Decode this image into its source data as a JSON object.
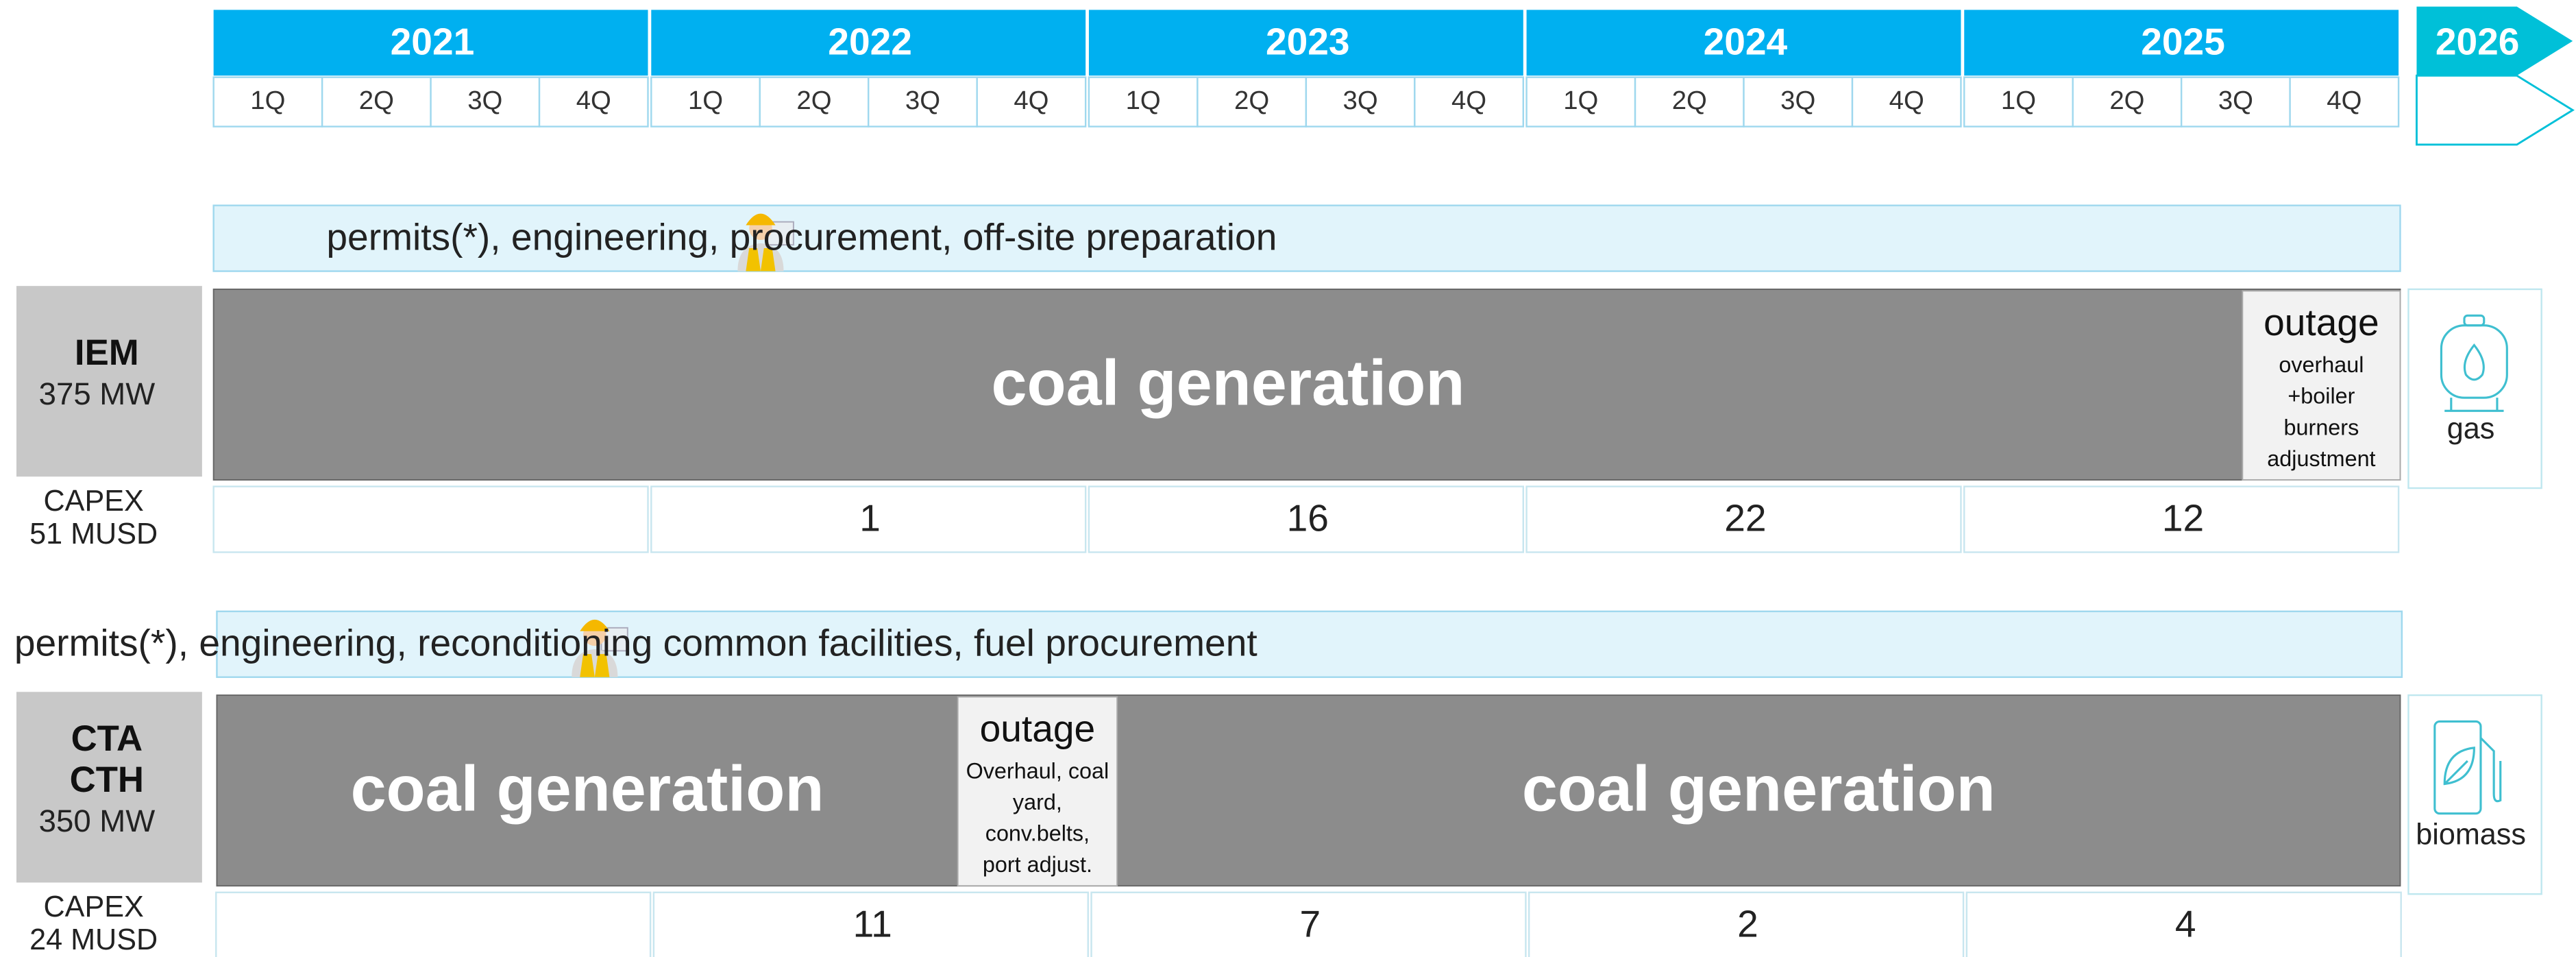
{
  "timeline": {
    "years": [
      {
        "label": "2021",
        "quarters": [
          "1Q",
          "2Q",
          "3Q",
          "4Q"
        ]
      },
      {
        "label": "2022",
        "quarters": [
          "1Q",
          "2Q",
          "3Q",
          "4Q"
        ]
      },
      {
        "label": "2023",
        "quarters": [
          "1Q",
          "2Q",
          "3Q",
          "4Q"
        ]
      },
      {
        "label": "2024",
        "quarters": [
          "1Q",
          "2Q",
          "3Q",
          "4Q"
        ]
      },
      {
        "label": "2025",
        "quarters": [
          "1Q",
          "2Q",
          "3Q",
          "4Q"
        ]
      }
    ],
    "next_year": "2026"
  },
  "plants": [
    {
      "name": [
        "IEM"
      ],
      "capacity": "375 MW",
      "capex_label": "CAPEX",
      "capex_total": "51 MUSD",
      "preparation": "permits(*), engineering, procurement, off-site preparation",
      "segments": [
        {
          "label": "coal generation"
        },
        {
          "title": "outage",
          "detail": [
            "overhaul",
            "+boiler",
            "burners",
            "adjustment"
          ]
        }
      ],
      "capex_by_year": [
        null,
        1,
        16,
        22,
        12
      ],
      "fuel": "gas"
    },
    {
      "name": [
        "CTA",
        "CTH"
      ],
      "capacity": "350 MW",
      "capex_label": "CAPEX",
      "capex_total": "24 MUSD",
      "preparation": "permits(*), engineering, reconditioning common facilities, fuel procurement",
      "segments": [
        {
          "label": "coal generation"
        },
        {
          "title": "outage",
          "detail": [
            "Overhaul, coal",
            "yard,",
            "conv.belts,",
            "port adjust."
          ]
        },
        {
          "label": "coal generation"
        }
      ],
      "capex_by_year": [
        null,
        11,
        7,
        2,
        4
      ],
      "fuel": "biomass"
    }
  ]
}
